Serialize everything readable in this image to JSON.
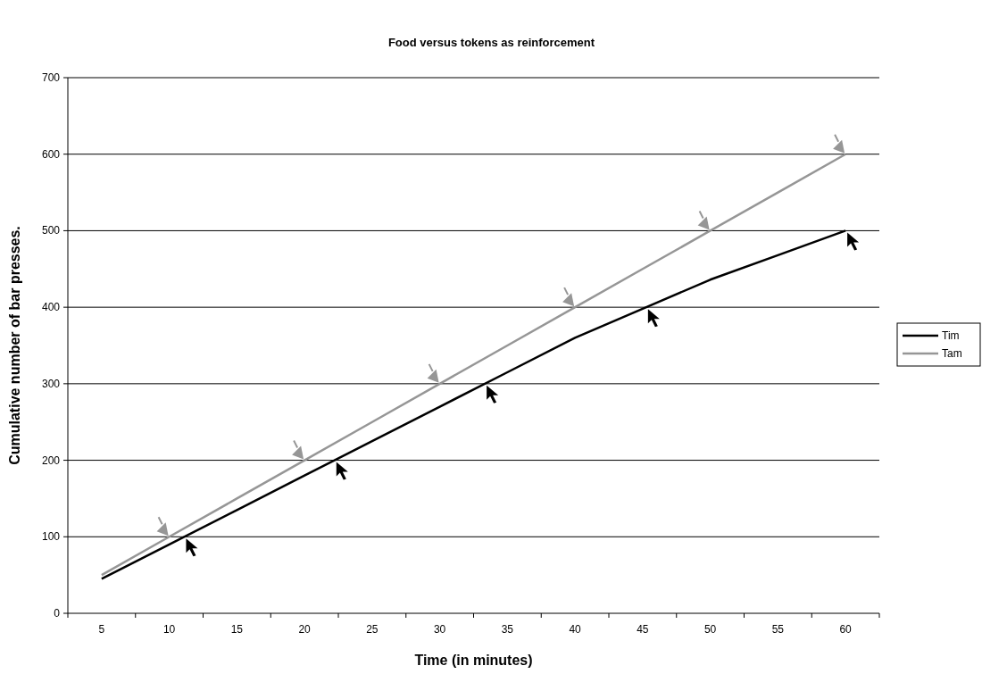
{
  "chart_data": {
    "type": "line",
    "title": "Food versus tokens as reinforcement",
    "xlabel": "Time (in minutes)",
    "ylabel": "Cumulative number of bar presses.",
    "categories": [
      "5",
      "10",
      "15",
      "20",
      "25",
      "30",
      "35",
      "40",
      "45",
      "50",
      "55",
      "60"
    ],
    "series": [
      {
        "name": "Tim",
        "color": "#000000",
        "values": [
          45,
          90,
          135,
          180,
          225,
          270,
          315,
          360,
          398,
          436,
          468,
          500
        ]
      },
      {
        "name": "Tam",
        "color": "#969696",
        "values": [
          50,
          100,
          150,
          200,
          250,
          300,
          350,
          400,
          450,
          500,
          550,
          600
        ]
      }
    ],
    "ylim": [
      0,
      700
    ],
    "yticks": [
      0,
      100,
      200,
      300,
      400,
      500,
      600,
      700
    ],
    "grid": "y",
    "legend": "right",
    "marker": "none",
    "line_style": "solid"
  }
}
